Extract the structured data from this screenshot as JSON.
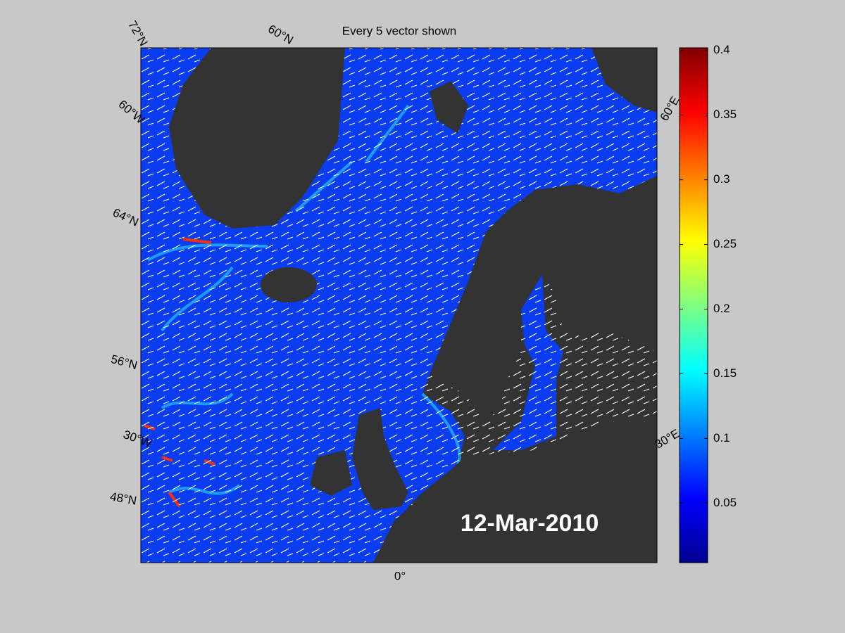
{
  "title": "Every 5 vector shown",
  "date": "12-Mar-2010",
  "grid_labels": [
    "72°N",
    "60°N",
    "60°W",
    "64°N",
    "56°N",
    "30°W",
    "48°N",
    "0°",
    "60°E",
    "30°E"
  ],
  "colorbar": {
    "lim": [
      0.004,
      0.402
    ],
    "ticks": [
      0.05,
      0.1,
      0.15,
      0.2,
      0.25,
      0.3,
      0.35,
      0.4
    ]
  }
}
